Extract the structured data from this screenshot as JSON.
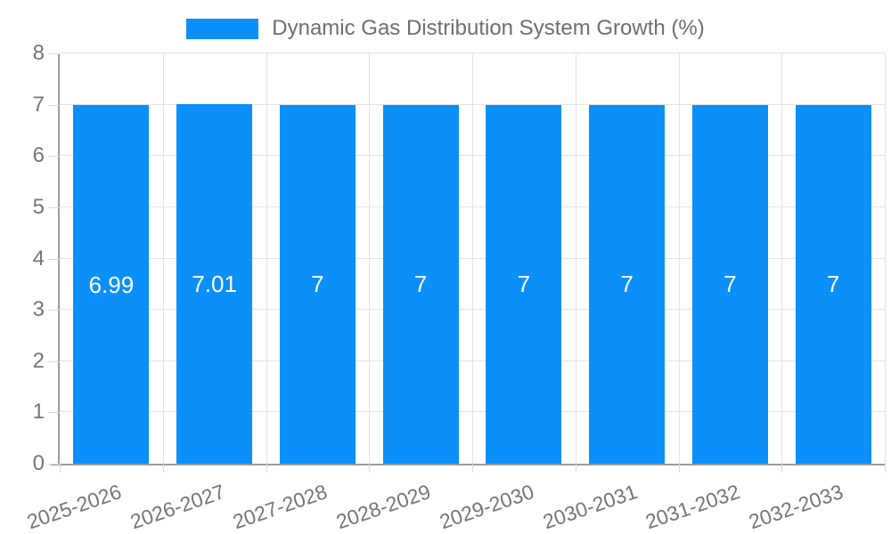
{
  "chart_data": {
    "type": "bar",
    "title": "Dynamic Gas Distribution System Growth (%)",
    "categories": [
      "2025-2026",
      "2026-2027",
      "2027-2028",
      "2028-2029",
      "2029-2030",
      "2030-2031",
      "2031-2032",
      "2032-2033"
    ],
    "values": [
      6.99,
      7.01,
      7,
      7,
      7,
      7,
      7,
      7
    ],
    "value_labels": [
      "6.99",
      "7.01",
      "7",
      "7",
      "7",
      "7",
      "7",
      "7"
    ],
    "ylim": [
      0,
      8
    ],
    "yticks": [
      0,
      1,
      2,
      3,
      4,
      5,
      6,
      7,
      8
    ],
    "grid": true,
    "legend_position": "top",
    "colors": {
      "bar": "#0b8ff9",
      "bar_label": "#ffffff",
      "axis_text": "#757575",
      "legend_text": "#6e6e6e",
      "gridline": "#e3e3e3",
      "axis_line": "#9b9b9b",
      "tick": "#d9d9d9"
    }
  }
}
